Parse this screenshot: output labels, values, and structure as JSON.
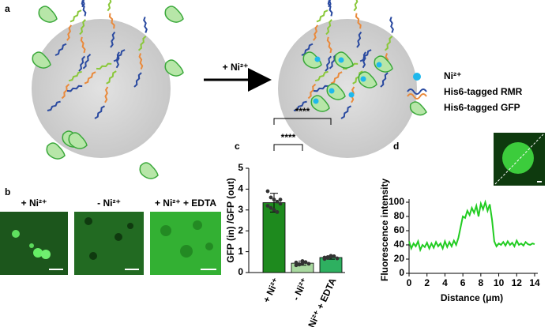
{
  "panel_labels": [
    "a",
    "b",
    "c",
    "d"
  ],
  "diagram": {
    "arrow_label": "+ Ni²⁺",
    "legend": [
      "Ni²⁺",
      "His6-tagged RMR",
      "His6-tagged GFP"
    ]
  },
  "images": {
    "labels": [
      "+ Ni²⁺",
      "- Ni²⁺",
      "+ Ni²⁺ + EDTA"
    ]
  },
  "chart_data": [
    {
      "type": "bar",
      "ylabel": "GFP (in) /GFP (out)",
      "categories": [
        "+ Ni²⁺",
        "- Ni²⁺",
        "+ Ni²⁺ + EDTA"
      ],
      "values": [
        3.35,
        0.45,
        0.72
      ],
      "errors": [
        0.45,
        0.1,
        0.08
      ],
      "colors": [
        "#1e8a1e",
        "#a9d9a0",
        "#2eb060"
      ],
      "points": [
        [
          3.9,
          3.6,
          3.5,
          3.4,
          3.3,
          3.2,
          3.1,
          3.0,
          2.9,
          3.5
        ],
        [
          0.35,
          0.4,
          0.45,
          0.5,
          0.42,
          0.48,
          0.38,
          0.55
        ],
        [
          0.65,
          0.7,
          0.75,
          0.78,
          0.68,
          0.72,
          0.74,
          0.8
        ]
      ],
      "annotations": [
        "****",
        "****"
      ],
      "ylim": [
        0,
        5
      ],
      "yticks": [
        0,
        1,
        2,
        3,
        4,
        5
      ]
    },
    {
      "type": "line",
      "xlabel": "Distance (μm)",
      "ylabel": "Fluorescence intensity",
      "x": [
        0,
        0.25,
        0.5,
        0.75,
        1,
        1.25,
        1.5,
        1.75,
        2,
        2.25,
        2.5,
        2.75,
        3,
        3.25,
        3.5,
        3.75,
        4,
        4.25,
        4.5,
        4.75,
        5,
        5.25,
        5.5,
        5.75,
        6,
        6.25,
        6.5,
        6.75,
        7,
        7.25,
        7.5,
        7.75,
        8,
        8.25,
        8.5,
        8.75,
        9,
        9.25,
        9.5,
        9.75,
        10,
        10.25,
        10.5,
        10.75,
        11,
        11.25,
        11.5,
        11.75,
        12,
        12.25,
        12.5,
        12.75,
        13,
        13.25,
        13.5,
        13.75,
        14
      ],
      "series": [
        {
          "color": "#22cc22",
          "values": [
            45,
            35,
            42,
            38,
            45,
            33,
            40,
            37,
            43,
            35,
            42,
            36,
            44,
            38,
            42,
            35,
            45,
            37,
            44,
            38,
            46,
            40,
            50,
            65,
            80,
            78,
            88,
            82,
            92,
            85,
            95,
            80,
            98,
            90,
            100,
            88,
            97,
            75,
            45,
            38,
            42,
            40,
            44,
            39,
            45,
            40,
            43,
            38,
            46,
            40,
            42,
            39,
            44,
            41,
            40,
            42,
            41
          ]
        }
      ],
      "xlim": [
        0,
        14
      ],
      "ylim": [
        0,
        100
      ],
      "xticks": [
        0,
        2,
        4,
        6,
        8,
        10,
        12,
        14
      ],
      "yticks": [
        0,
        20,
        40,
        60,
        80,
        100
      ]
    }
  ]
}
